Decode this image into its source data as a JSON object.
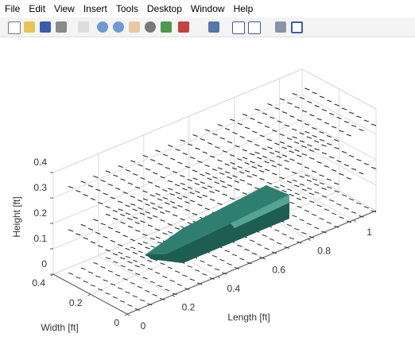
{
  "menu": [
    "File",
    "Edit",
    "View",
    "Insert",
    "Tools",
    "Desktop",
    "Window",
    "Help"
  ],
  "chart_data": {
    "type": "surface3d",
    "xlabel": "Length [ft]",
    "ylabel": "Width [ft]",
    "zlabel": "Height [ft]",
    "xlim": [
      0,
      1.1
    ],
    "ylim": [
      0,
      0.4
    ],
    "zlim": [
      0,
      0.4
    ],
    "xticks": [
      0,
      0.2,
      0.4,
      0.6,
      0.8,
      1
    ],
    "yticks": [
      0,
      0.2,
      0.4
    ],
    "zticks": [
      0,
      0.1,
      0.2,
      0.3,
      0.4
    ],
    "grid": true,
    "color": "#2f7f70"
  }
}
